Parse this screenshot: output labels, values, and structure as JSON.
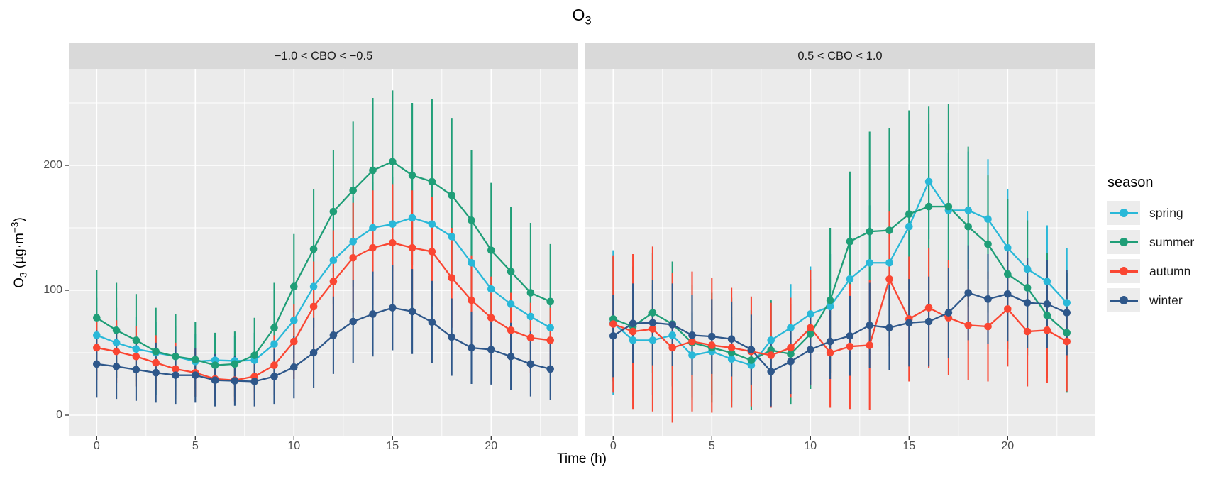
{
  "title": {
    "main": "O",
    "sub": "3"
  },
  "axes": {
    "x_label": "Time (h)",
    "y_label_parts": {
      "pre": "O",
      "sub": "3",
      "mid": " (µg·m",
      "sup": "−3",
      "post": ")"
    },
    "x_ticks": [
      0,
      5,
      10,
      15,
      20
    ],
    "x_minor": [
      2.5,
      7.5,
      12.5,
      17.5,
      22.5
    ],
    "y_ticks": [
      0,
      100,
      200
    ],
    "y_minor": [
      50,
      150,
      250
    ]
  },
  "legend": {
    "title": "season",
    "items": [
      {
        "label": "spring",
        "color": "#29b8d8"
      },
      {
        "label": "summer",
        "color": "#1f9e77"
      },
      {
        "label": "autumn",
        "color": "#fa4632"
      },
      {
        "label": "winter",
        "color": "#2e578a"
      }
    ]
  },
  "style": {
    "panel_bg": "#ebebeb",
    "strip_bg": "#d9d9d9",
    "grid_color": "#ffffff",
    "tick_mark_color": "#333333",
    "tick_label_color": "#4d4d4d",
    "key_bg": "#ececec"
  },
  "chart_data": {
    "type": "line",
    "subtype": "pointrange-errorbar",
    "title": "O3",
    "xlabel": "Time (h)",
    "ylabel": "O3 (µg·m−3)",
    "x": [
      0,
      1,
      2,
      3,
      4,
      5,
      6,
      7,
      8,
      9,
      10,
      11,
      12,
      13,
      14,
      15,
      16,
      17,
      18,
      19,
      20,
      21,
      22,
      23
    ],
    "xlim": [
      -1.2,
      24.2
    ],
    "ylim": [
      -17,
      277
    ],
    "grid": true,
    "legend_position": "right",
    "facets": [
      {
        "label": "−1.0 < CBO < −0.5",
        "series": [
          {
            "name": "spring",
            "color": "#29b8d8",
            "values": [
              64,
              58,
              53,
              50,
              47,
              43,
              44,
              43.5,
              44,
              57,
              76,
              103,
              124,
              139,
              150,
              153,
              158,
              153,
              143,
              122,
              101,
              89,
              79,
              70
            ],
            "err": [
              30,
              28,
              26,
              25,
              24,
              22,
              20,
              20,
              22,
              26,
              30,
              33,
              35,
              36,
              37,
              38,
              38,
              37,
              35,
              33,
              32,
              30,
              29,
              28
            ]
          },
          {
            "name": "summer",
            "color": "#1f9e77",
            "values": [
              78,
              68,
              60,
              51,
              47,
              44.5,
              40,
              41,
              48,
              70,
              103,
              133,
              163,
              180,
              196,
              203,
              192,
              187,
              176,
              156,
              132,
              115,
              98,
              91
            ],
            "err": [
              38,
              38,
              37,
              35,
              34,
              30,
              26,
              26,
              30,
              36,
              42,
              48,
              49,
              55,
              58,
              57,
              58,
              66,
              62,
              56,
              54,
              52,
              56,
              46
            ]
          },
          {
            "name": "autumn",
            "color": "#fa4632",
            "values": [
              54,
              51,
              47,
              42,
              37,
              34,
              29,
              28,
              31,
              40,
              59,
              87,
              107,
              126,
              134,
              138,
              134,
              131,
              110,
              92,
              78,
              68,
              62,
              60
            ],
            "err": [
              26,
              25,
              24,
              22,
              21,
              19,
              17,
              17,
              19,
              24,
              30,
              36,
              41,
              44,
              46,
              47,
              46,
              44,
              40,
              36,
              33,
              30,
              28,
              26
            ]
          },
          {
            "name": "winter",
            "color": "#2e578a",
            "values": [
              41,
              39,
              36.5,
              34,
              32,
              32,
              28,
              27.5,
              27,
              31,
              38.5,
              50,
              64,
              75,
              81,
              86,
              83,
              74.5,
              62.5,
              54,
              52.5,
              47,
              41,
              37
            ],
            "err": [
              27,
              26,
              25,
              24,
              23,
              22,
              21,
              20,
              20,
              22,
              25,
              28,
              31,
              33,
              34,
              34,
              34,
              33,
              31,
              29,
              28,
              27,
              26,
              25
            ]
          }
        ]
      },
      {
        "label": "0.5 < CBO < 1.0",
        "series": [
          {
            "name": "spring",
            "color": "#29b8d8",
            "values": [
              74,
              60,
              60,
              64,
              48,
              51,
              45,
              40,
              60,
              70,
              81,
              87,
              109,
              122,
              122,
              151,
              187,
              164,
              164,
              157,
              134,
              117,
              107,
              90
            ],
            "err": [
              58,
              46,
              44,
              40,
              34,
              35,
              34,
              30,
              32,
              35,
              38,
              42,
              45,
              46,
              48,
              50,
              46,
              46,
              47,
              48,
              47,
              46,
              45,
              44
            ]
          },
          {
            "name": "summer",
            "color": "#1f9e77",
            "values": [
              77,
              71,
              82,
              73,
              58,
              54,
              50,
              44,
              52,
              49,
              65,
              92,
              139,
              147,
              148,
              161,
              167,
              167,
              151,
              137,
              113,
              102,
              80,
              66
            ],
            "err": [
              50,
              48,
              48,
              50,
              46,
              44,
              44,
              40,
              40,
              40,
              44,
              58,
              56,
              80,
              82,
              83,
              80,
              82,
              64,
              55,
              60,
              54,
              50,
              48
            ]
          },
          {
            "name": "autumn",
            "color": "#fa4632",
            "values": [
              73,
              67,
              69,
              54,
              59,
              56,
              54,
              51,
              48,
              54,
              70,
              50,
              55,
              56,
              109,
              77,
              86,
              78,
              72,
              71,
              85,
              67,
              68,
              59
            ],
            "err": [
              55,
              62,
              66,
              60,
              56,
              54,
              48,
              44,
              42,
              40,
              46,
              44,
              50,
              52,
              54,
              50,
              48,
              46,
              44,
              44,
              46,
              44,
              42,
              40
            ]
          },
          {
            "name": "winter",
            "color": "#2e578a",
            "values": [
              63.5,
              73.5,
              74,
              72.5,
              64,
              63,
              61,
              52.5,
              35,
              43,
              52.5,
              59,
              63.5,
              72,
              70,
              74,
              75,
              82,
              98,
              93,
              97,
              90,
              89,
              82
            ],
            "err": [
              33,
              32,
              34,
              33,
              32,
              30,
              30,
              28,
              28,
              26,
              28,
              30,
              32,
              34,
              34,
              35,
              36,
              36,
              38,
              36,
              38,
              36,
              35,
              34
            ]
          }
        ]
      }
    ]
  }
}
